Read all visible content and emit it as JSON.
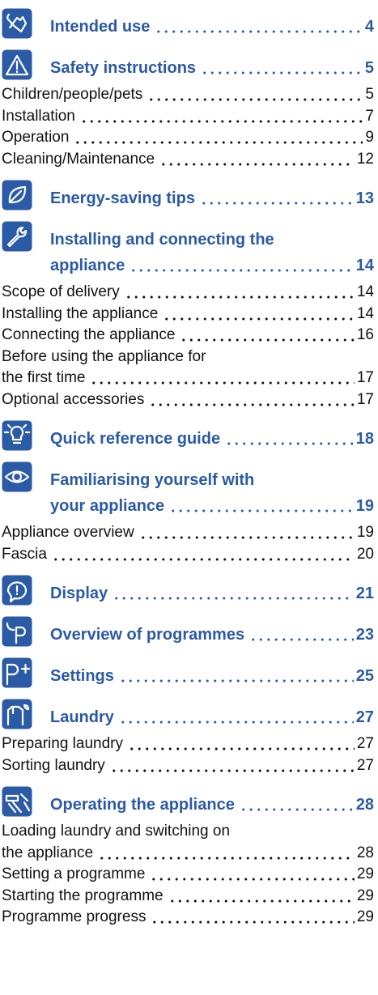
{
  "toc": [
    {
      "title_lines": [
        "Intended use"
      ],
      "page": 4,
      "entries": []
    },
    {
      "title_lines": [
        "Safety instructions"
      ],
      "page": 5,
      "entries": [
        {
          "lines": [
            "Children/people/pets"
          ],
          "page": 5
        },
        {
          "lines": [
            "Installation"
          ],
          "page": 7
        },
        {
          "lines": [
            "Operation"
          ],
          "page": 9
        },
        {
          "lines": [
            "Cleaning/Maintenance"
          ],
          "page": 12
        }
      ]
    },
    {
      "title_lines": [
        "Energy-saving tips"
      ],
      "page": 13,
      "entries": []
    },
    {
      "title_lines": [
        "Installing and connecting the",
        "appliance"
      ],
      "page": 14,
      "entries": [
        {
          "lines": [
            "Scope of delivery"
          ],
          "page": 14
        },
        {
          "lines": [
            "Installing the appliance"
          ],
          "page": 14
        },
        {
          "lines": [
            "Connecting the appliance"
          ],
          "page": 16
        },
        {
          "lines": [
            "Before using the appliance for",
            "the first time"
          ],
          "page": 17
        },
        {
          "lines": [
            "Optional accessories"
          ],
          "page": 17
        }
      ]
    },
    {
      "title_lines": [
        "Quick reference guide"
      ],
      "page": 18,
      "entries": []
    },
    {
      "title_lines": [
        "Familiarising yourself with",
        "your appliance"
      ],
      "page": 19,
      "entries": [
        {
          "lines": [
            "Appliance overview"
          ],
          "page": 19
        },
        {
          "lines": [
            "Fascia"
          ],
          "page": 20
        }
      ]
    },
    {
      "title_lines": [
        "Display"
      ],
      "page": 21,
      "entries": []
    },
    {
      "title_lines": [
        "Overview of programmes"
      ],
      "page": 23,
      "entries": []
    },
    {
      "title_lines": [
        "Settings"
      ],
      "page": 25,
      "entries": []
    },
    {
      "title_lines": [
        "Laundry"
      ],
      "page": 27,
      "entries": [
        {
          "lines": [
            "Preparing laundry"
          ],
          "page": 27
        },
        {
          "lines": [
            "Sorting laundry"
          ],
          "page": 27
        }
      ]
    },
    {
      "title_lines": [
        "Operating the appliance"
      ],
      "page": 28,
      "entries": [
        {
          "lines": [
            "Loading laundry and switching on",
            "the appliance"
          ],
          "page": 28
        },
        {
          "lines": [
            "Setting a programme"
          ],
          "page": 29
        },
        {
          "lines": [
            "Starting the programme"
          ],
          "page": 29
        },
        {
          "lines": [
            "Programme progress"
          ],
          "page": 29
        }
      ]
    }
  ]
}
